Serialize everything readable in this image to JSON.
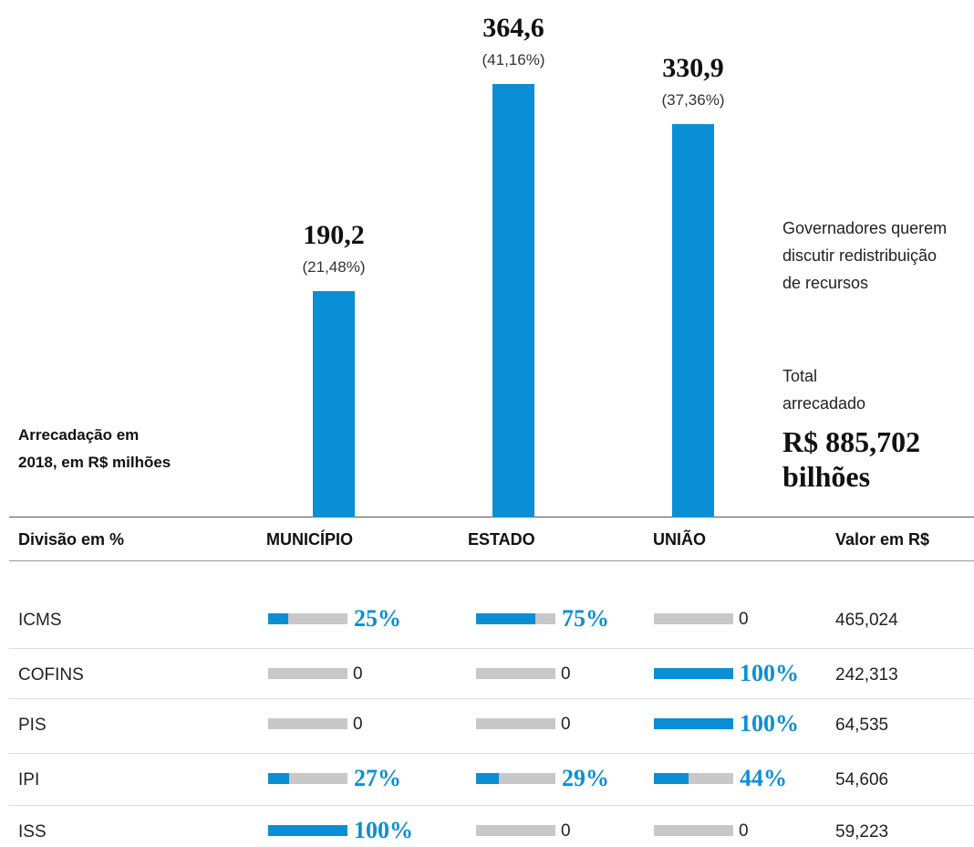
{
  "chart_data": {
    "type": "bar",
    "y_label": "Arrecadação em 2018, em R$ milhões",
    "categories": [
      "MUNICÍPIO",
      "ESTADO",
      "UNIÃO"
    ],
    "values": [
      190.2,
      364.6,
      330.9
    ],
    "value_labels": [
      "190,2",
      "364,6",
      "330,9"
    ],
    "shares": [
      21.48,
      41.16,
      37.36
    ],
    "share_labels": [
      "(21,48%)",
      "(41,16%)",
      "(37,36%)"
    ],
    "color": "#0a8fd6"
  },
  "note": "Governadores querem discutir redistribuição de recursos",
  "total_label": "Total arrecadado",
  "total_value": "R$ 885,702 bilhões",
  "table": {
    "row_header": "Divisão em %",
    "value_header": "Valor em R$",
    "bar_color": "#0a8fd6",
    "track_color": "#c8c8c8",
    "rows": [
      {
        "label": "ICMS",
        "shares": [
          25,
          75,
          0
        ],
        "share_labels": [
          "25%",
          "75%",
          "0"
        ],
        "total": 465.024,
        "total_label": "465,024"
      },
      {
        "label": "COFINS",
        "shares": [
          0,
          0,
          100
        ],
        "share_labels": [
          "0",
          "0",
          "100%"
        ],
        "total": 242.313,
        "total_label": "242,313"
      },
      {
        "label": "PIS",
        "shares": [
          0,
          0,
          100
        ],
        "share_labels": [
          "0",
          "0",
          "100%"
        ],
        "total": 64.535,
        "total_label": "64,535"
      },
      {
        "label": "IPI",
        "shares": [
          27,
          29,
          44
        ],
        "share_labels": [
          "27%",
          "29%",
          "44%"
        ],
        "total": 54.606,
        "total_label": "54,606"
      },
      {
        "label": "ISS",
        "shares": [
          100,
          0,
          0
        ],
        "share_labels": [
          "100%",
          "0",
          "0"
        ],
        "total": 59.223,
        "total_label": "59,223"
      }
    ]
  }
}
